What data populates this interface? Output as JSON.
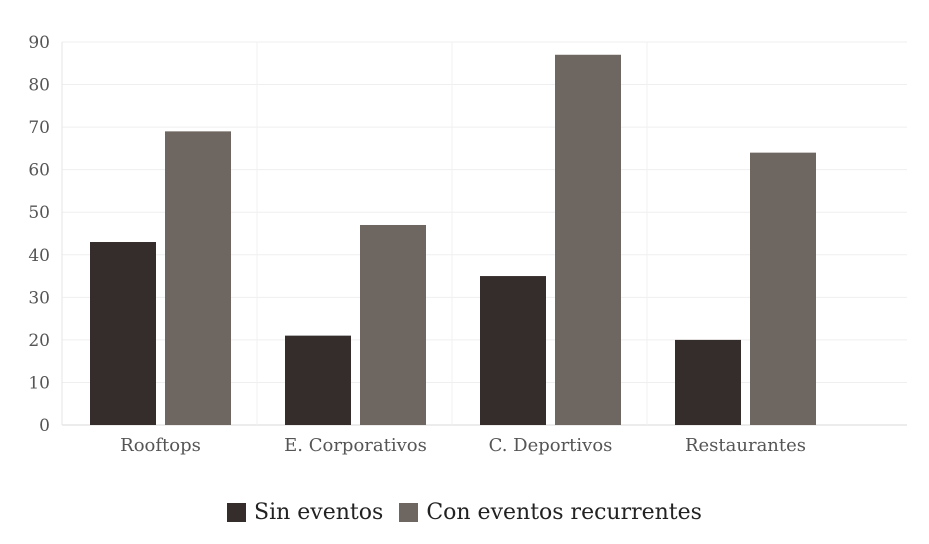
{
  "chart_data": {
    "type": "bar",
    "categories": [
      "Rooftops",
      "E. Corporativos",
      "C. Deportivos",
      "Restaurantes"
    ],
    "series": [
      {
        "name": "Sin eventos",
        "values": [
          43,
          21,
          35,
          20
        ],
        "color": "#352d2b"
      },
      {
        "name": "Con eventos recurrentes",
        "values": [
          69,
          47,
          87,
          64
        ],
        "color": "#6e6660"
      }
    ],
    "title": "",
    "xlabel": "",
    "ylabel": "",
    "ylim": [
      0,
      90
    ],
    "yticks": [
      0,
      10,
      20,
      30,
      40,
      50,
      60,
      70,
      80,
      90
    ],
    "grid": true,
    "legend_position": "bottom-center"
  }
}
